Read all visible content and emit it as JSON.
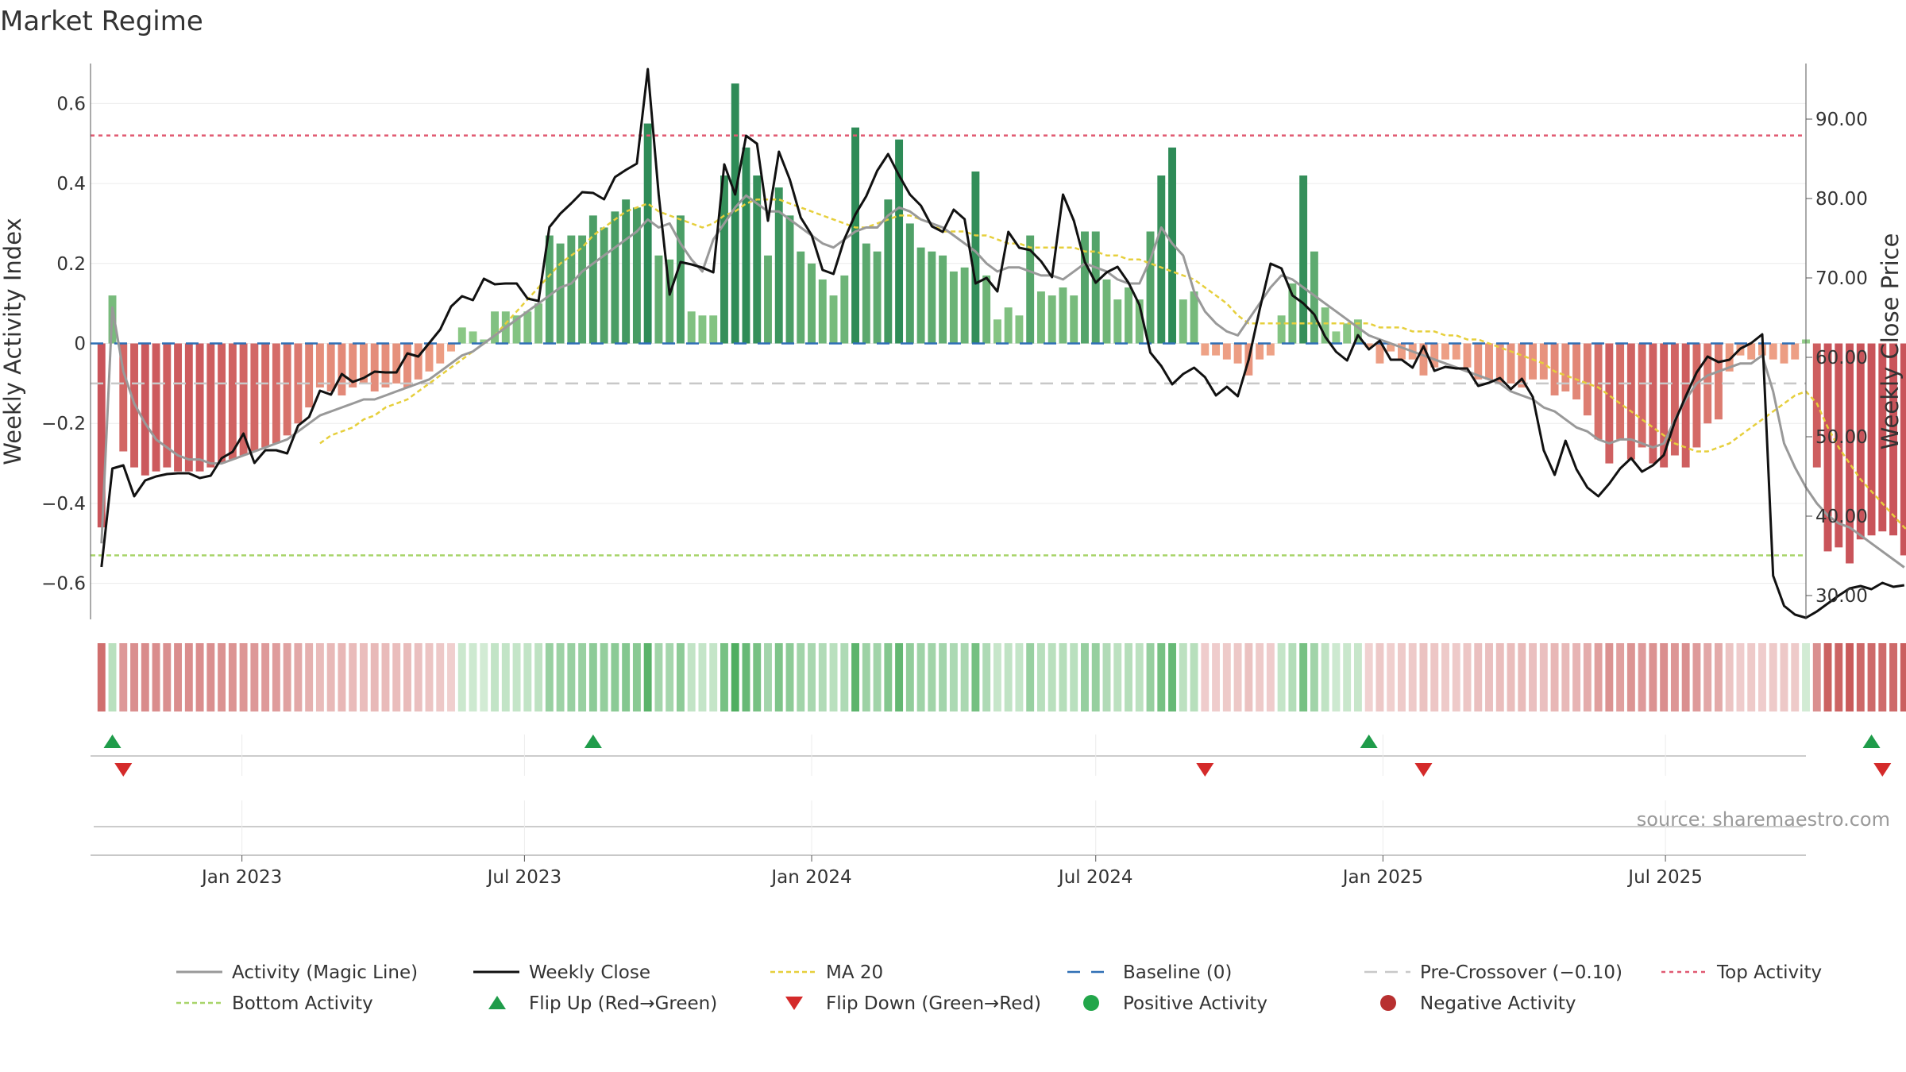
{
  "chart_data": {
    "type": "bar",
    "title": "Market Regime",
    "ylabel_left": "Weekly Activity Index",
    "ylabel_right": "Weekly Close Price",
    "source": "source: sharemaestro.com",
    "x_range": [
      "2022-09-26",
      "2025-09-29"
    ],
    "ylim_left": [
      -0.69,
      0.7
    ],
    "ylim_right": [
      27.0,
      97.0
    ],
    "y_ticks_left": [
      {
        "v": 0.6,
        "label": "0.6"
      },
      {
        "v": 0.4,
        "label": "0.4"
      },
      {
        "v": 0.2,
        "label": "0.2"
      },
      {
        "v": 0,
        "label": "0"
      },
      {
        "v": -0.2,
        "label": "−0.2"
      },
      {
        "v": -0.4,
        "label": "−0.4"
      },
      {
        "v": -0.6,
        "label": "−0.6"
      }
    ],
    "y_ticks_right": [
      "90.00",
      "80.00",
      "70.00",
      "60.00",
      "50.00",
      "40.00",
      "30.00"
    ],
    "x_ticks": [
      {
        "label": "Jan 2023",
        "date": "2023-01-01"
      },
      {
        "label": "Jul 2023",
        "date": "2023-07-01"
      },
      {
        "label": "Jan 2024",
        "date": "2024-01-01"
      },
      {
        "label": "Jul 2024",
        "date": "2024-07-01"
      },
      {
        "label": "Jan 2025",
        "date": "2025-01-01"
      },
      {
        "label": "Jul 2025",
        "date": "2025-07-01"
      }
    ],
    "first_week": "2022-10-03",
    "week_step_days": 7,
    "activity": [
      -0.46,
      0.12,
      -0.27,
      -0.31,
      -0.33,
      -0.32,
      -0.31,
      -0.32,
      -0.32,
      -0.32,
      -0.31,
      -0.3,
      -0.29,
      -0.28,
      -0.27,
      -0.26,
      -0.25,
      -0.23,
      -0.2,
      -0.16,
      -0.11,
      -0.12,
      -0.13,
      -0.11,
      -0.1,
      -0.12,
      -0.11,
      -0.1,
      -0.11,
      -0.09,
      -0.07,
      -0.05,
      -0.02,
      0.04,
      0.03,
      0.01,
      0.08,
      0.08,
      0.07,
      0.08,
      0.1,
      0.27,
      0.25,
      0.27,
      0.27,
      0.32,
      0.29,
      0.33,
      0.36,
      0.34,
      0.55,
      0.22,
      0.21,
      0.32,
      0.08,
      0.07,
      0.07,
      0.42,
      0.65,
      0.49,
      0.42,
      0.22,
      0.39,
      0.32,
      0.23,
      0.2,
      0.16,
      0.12,
      0.17,
      0.54,
      0.25,
      0.23,
      0.36,
      0.51,
      0.3,
      0.24,
      0.23,
      0.22,
      0.18,
      0.19,
      0.43,
      0.17,
      0.06,
      0.09,
      0.07,
      0.27,
      0.13,
      0.12,
      0.14,
      0.12,
      0.28,
      0.28,
      0.16,
      0.11,
      0.14,
      0.11,
      0.28,
      0.42,
      0.49,
      0.11,
      0.13,
      -0.03,
      -0.03,
      -0.04,
      -0.05,
      -0.08,
      -0.04,
      -0.03,
      0.07,
      0.15,
      0.42,
      0.23,
      0.09,
      0.03,
      0.05,
      0.06,
      -0.01,
      -0.05,
      -0.02,
      -0.04,
      -0.04,
      -0.08,
      -0.06,
      -0.04,
      -0.04,
      -0.06,
      -0.09,
      -0.09,
      -0.1,
      -0.1,
      -0.11,
      -0.09,
      -0.09,
      -0.13,
      -0.12,
      -0.14,
      -0.18,
      -0.24,
      -0.3,
      -0.24,
      -0.29,
      -0.26,
      -0.3,
      -0.31,
      -0.28,
      -0.31,
      -0.26,
      -0.2,
      -0.19,
      -0.07,
      -0.03,
      -0.04,
      -0.03,
      -0.04,
      -0.05,
      -0.04,
      0.01,
      -0.31,
      -0.52,
      -0.51,
      -0.55,
      -0.49,
      -0.48,
      -0.47,
      -0.48,
      -0.53,
      -0.53,
      -0.5,
      -0.55,
      -0.55
    ],
    "series": [
      {
        "name": "Activity (Magic Line)",
        "color": "#999999",
        "values": [
          -0.5,
          0.09,
          -0.07,
          -0.15,
          -0.2,
          -0.24,
          -0.26,
          -0.28,
          -0.29,
          -0.29,
          -0.3,
          -0.3,
          -0.29,
          -0.28,
          -0.27,
          -0.26,
          -0.25,
          -0.24,
          -0.22,
          -0.2,
          -0.18,
          -0.17,
          -0.16,
          -0.15,
          -0.14,
          -0.14,
          -0.13,
          -0.12,
          -0.11,
          -0.1,
          -0.09,
          -0.07,
          -0.05,
          -0.03,
          -0.02,
          0.0,
          0.02,
          0.04,
          0.06,
          0.08,
          0.1,
          0.12,
          0.14,
          0.15,
          0.18,
          0.2,
          0.22,
          0.24,
          0.26,
          0.28,
          0.31,
          0.29,
          0.3,
          0.25,
          0.21,
          0.18,
          0.26,
          0.3,
          0.34,
          0.37,
          0.35,
          0.33,
          0.33,
          0.31,
          0.29,
          0.27,
          0.25,
          0.24,
          0.26,
          0.28,
          0.29,
          0.29,
          0.32,
          0.34,
          0.33,
          0.31,
          0.3,
          0.29,
          0.27,
          0.25,
          0.23,
          0.2,
          0.18,
          0.19,
          0.19,
          0.18,
          0.17,
          0.17,
          0.16,
          0.18,
          0.2,
          0.19,
          0.18,
          0.16,
          0.15,
          0.15,
          0.21,
          0.29,
          0.25,
          0.22,
          0.13,
          0.08,
          0.05,
          0.03,
          0.02,
          0.06,
          0.1,
          0.14,
          0.17,
          0.16,
          0.14,
          0.12,
          0.1,
          0.08,
          0.06,
          0.04,
          0.02,
          0.01,
          0.0,
          -0.01,
          -0.02,
          -0.03,
          -0.04,
          -0.05,
          -0.06,
          -0.07,
          -0.08,
          -0.09,
          -0.1,
          -0.12,
          -0.13,
          -0.14,
          -0.16,
          -0.17,
          -0.19,
          -0.21,
          -0.22,
          -0.24,
          -0.25,
          -0.24,
          -0.24,
          -0.25,
          -0.26,
          -0.25,
          -0.19,
          -0.14,
          -0.1,
          -0.08,
          -0.07,
          -0.06,
          -0.05,
          -0.05,
          -0.03,
          -0.12,
          -0.25,
          -0.31,
          -0.36,
          -0.4,
          -0.43,
          -0.45,
          -0.46,
          -0.48,
          -0.5,
          -0.52,
          -0.54,
          -0.56
        ]
      },
      {
        "name": "Weekly Close",
        "color": "#111111",
        "values": [
          33.6,
          46.0,
          46.4,
          42.5,
          44.5,
          45.0,
          45.3,
          45.4,
          45.4,
          44.8,
          45.1,
          47.3,
          48.1,
          50.4,
          46.7,
          48.3,
          48.3,
          47.9,
          51.4,
          52.5,
          55.8,
          55.3,
          57.9,
          56.9,
          57.4,
          58.2,
          58.1,
          58.1,
          60.5,
          60.1,
          61.8,
          63.5,
          66.4,
          67.7,
          67.2,
          69.9,
          69.2,
          69.3,
          69.3,
          67.4,
          67.1,
          76.4,
          78.1,
          79.4,
          80.8,
          80.7,
          79.9,
          82.7,
          83.6,
          84.4,
          96.3,
          80.5,
          67.9,
          72.0,
          71.7,
          71.3,
          70.7,
          84.3,
          80.5,
          87.9,
          86.9,
          77.2,
          85.9,
          82.4,
          77.6,
          75.4,
          71.0,
          70.5,
          74.9,
          78.0,
          80.3,
          83.5,
          85.6,
          82.9,
          80.5,
          79.1,
          76.5,
          75.8,
          78.6,
          77.4,
          69.3,
          70.0,
          68.3,
          75.8,
          73.8,
          73.5,
          72.1,
          70.1,
          80.5,
          77.2,
          72.0,
          69.4,
          70.7,
          71.4,
          69.4,
          66.6,
          60.6,
          58.9,
          56.6,
          57.9,
          58.7,
          57.5,
          55.2,
          56.3,
          55.1,
          59.7,
          66.0,
          71.8,
          71.2,
          67.8,
          66.8,
          65.4,
          62.6,
          60.7,
          59.6,
          62.8,
          61.0,
          62.1,
          59.7,
          59.7,
          58.7,
          61.4,
          58.3,
          58.8,
          58.6,
          58.6,
          56.4,
          56.8,
          57.4,
          56.0,
          57.3,
          55.0,
          48.3,
          45.2,
          49.5,
          45.9,
          43.6,
          42.5,
          44.1,
          46.0,
          47.3,
          45.6,
          46.4,
          47.7,
          51.9,
          55.1,
          58.1,
          60.1,
          59.4,
          59.7,
          61.1,
          61.8,
          62.9,
          32.5,
          28.7,
          27.6,
          27.2,
          28.0,
          29.0,
          30.0,
          30.9,
          31.2,
          30.8,
          31.6,
          31.1,
          31.3
        ]
      },
      {
        "name": "MA 20",
        "color": "#e6cf3c",
        "values": [
          null,
          null,
          null,
          null,
          null,
          null,
          null,
          null,
          null,
          null,
          null,
          null,
          null,
          null,
          null,
          null,
          null,
          null,
          null,
          null,
          -0.25,
          -0.23,
          -0.22,
          -0.21,
          -0.19,
          -0.18,
          -0.16,
          -0.15,
          -0.14,
          -0.12,
          -0.1,
          -0.08,
          -0.06,
          -0.04,
          -0.02,
          0.0,
          0.02,
          0.05,
          0.08,
          0.11,
          0.14,
          0.17,
          0.2,
          0.22,
          0.24,
          0.27,
          0.29,
          0.31,
          0.33,
          0.34,
          0.35,
          0.33,
          0.32,
          0.31,
          0.3,
          0.29,
          0.3,
          0.32,
          0.33,
          0.35,
          0.36,
          0.36,
          0.36,
          0.35,
          0.34,
          0.33,
          0.32,
          0.31,
          0.3,
          0.29,
          0.29,
          0.3,
          0.31,
          0.32,
          0.32,
          0.31,
          0.3,
          0.28,
          0.28,
          0.28,
          0.27,
          0.27,
          0.26,
          0.25,
          0.25,
          0.24,
          0.24,
          0.24,
          0.24,
          0.24,
          0.23,
          0.23,
          0.22,
          0.22,
          0.21,
          0.21,
          0.2,
          0.19,
          0.18,
          0.17,
          0.16,
          0.14,
          0.12,
          0.1,
          0.07,
          0.05,
          0.05,
          0.05,
          0.05,
          0.05,
          0.05,
          0.05,
          0.05,
          0.05,
          0.05,
          0.05,
          0.05,
          0.04,
          0.04,
          0.04,
          0.03,
          0.03,
          0.03,
          0.02,
          0.02,
          0.01,
          0.01,
          0.0,
          -0.01,
          -0.02,
          -0.03,
          -0.04,
          -0.05,
          -0.07,
          -0.08,
          -0.09,
          -0.1,
          -0.11,
          -0.13,
          -0.15,
          -0.17,
          -0.19,
          -0.21,
          -0.23,
          -0.25,
          -0.26,
          -0.27,
          -0.27,
          -0.26,
          -0.25,
          -0.23,
          -0.21,
          -0.19,
          -0.17,
          -0.15,
          -0.13,
          -0.12,
          -0.15,
          -0.21,
          -0.26,
          -0.3,
          -0.34,
          -0.37,
          -0.4,
          -0.43,
          -0.46,
          -0.48,
          -0.5,
          -0.52,
          -0.53,
          -0.55
        ]
      }
    ],
    "baseline": {
      "name": "Baseline (0)",
      "value": 0,
      "color": "#2f6fb5"
    },
    "pre_crossover": {
      "name": "Pre-Crossover (−0.10)",
      "value": -0.1,
      "color": "#c8c8c8"
    },
    "top_activity": {
      "name": "Top Activity",
      "value": 0.52,
      "color": "#e05a72"
    },
    "bottom_activity": {
      "name": "Bottom Activity",
      "value": -0.53,
      "color": "#a8d46a"
    },
    "flip_up": {
      "name": "Flip Up (Red→Green)",
      "color": "#1f9c4a",
      "weeks": [
        1,
        45,
        116,
        162
      ]
    },
    "flip_down": {
      "name": "Flip Down (Green→Red)",
      "color": "#d42a2a",
      "weeks": [
        2,
        101,
        121,
        163
      ]
    },
    "positive_label": "Positive Activity",
    "negative_label": "Negative Activity",
    "positive_color": "#22a64a",
    "negative_color": "#b83030",
    "legend": [
      {
        "key": "magic",
        "label": "Activity (Magic Line)"
      },
      {
        "key": "close",
        "label": "Weekly Close"
      },
      {
        "key": "ma",
        "label": "MA 20"
      },
      {
        "key": "baseline",
        "label": "Baseline (0)"
      },
      {
        "key": "pre",
        "label": "Pre-Crossover (−0.10)"
      },
      {
        "key": "top",
        "label": "Top Activity"
      },
      {
        "key": "bottom",
        "label": "Bottom Activity"
      },
      {
        "key": "flipup",
        "label": "Flip Up (Red→Green)"
      },
      {
        "key": "flipdown",
        "label": "Flip Down (Green→Red)"
      },
      {
        "key": "pos",
        "label": "Positive Activity"
      },
      {
        "key": "neg",
        "label": "Negative Activity"
      }
    ]
  }
}
